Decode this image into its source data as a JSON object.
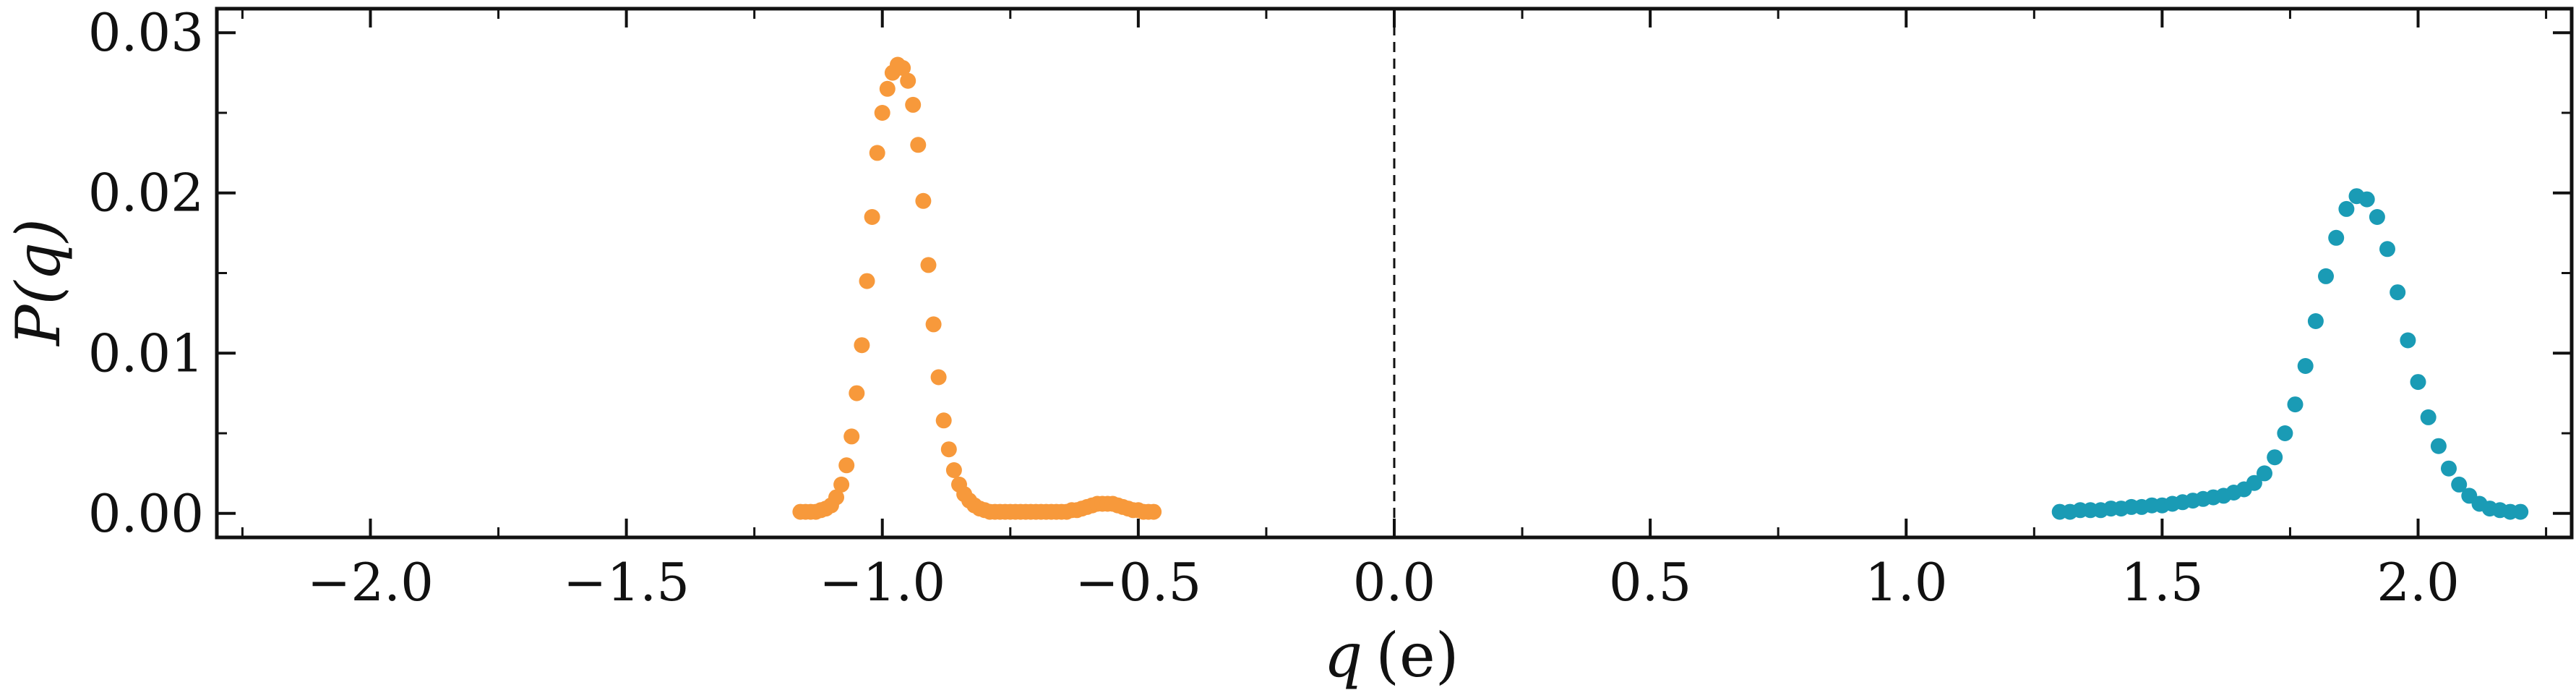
{
  "chart_data": {
    "type": "scatter",
    "xlabel_var": "q",
    "xlabel_unit": "(e)",
    "ylabel": "P(q)",
    "xlim": [
      -2.3,
      2.3
    ],
    "ylim": [
      -0.0015,
      0.0315
    ],
    "x_ticks": [
      -2.0,
      -1.5,
      -1.0,
      -0.5,
      0.0,
      0.5,
      1.0,
      1.5,
      2.0
    ],
    "x_tick_labels": [
      "−2.0",
      "−1.5",
      "−1.0",
      "−0.5",
      "0.0",
      "0.5",
      "1.0",
      "1.5",
      "2.0"
    ],
    "y_ticks": [
      0.0,
      0.01,
      0.02,
      0.03
    ],
    "y_tick_labels": [
      "0.00",
      "0.01",
      "0.02",
      "0.03"
    ],
    "reference_line_x": 0.0,
    "grid": false,
    "series": [
      {
        "color": "#f7993b",
        "x": [
          -1.16,
          -1.15,
          -1.14,
          -1.13,
          -1.12,
          -1.11,
          -1.1,
          -1.09,
          -1.08,
          -1.07,
          -1.06,
          -1.05,
          -1.04,
          -1.03,
          -1.02,
          -1.01,
          -1.0,
          -0.99,
          -0.98,
          -0.97,
          -0.96,
          -0.95,
          -0.94,
          -0.93,
          -0.92,
          -0.91,
          -0.9,
          -0.89,
          -0.88,
          -0.87,
          -0.86,
          -0.85,
          -0.84,
          -0.83,
          -0.82,
          -0.81,
          -0.8,
          -0.79,
          -0.78,
          -0.77,
          -0.76,
          -0.75,
          -0.74,
          -0.73,
          -0.72,
          -0.71,
          -0.7,
          -0.69,
          -0.68,
          -0.67,
          -0.66,
          -0.65,
          -0.64,
          -0.63,
          -0.62,
          -0.61,
          -0.6,
          -0.59,
          -0.58,
          -0.57,
          -0.56,
          -0.55,
          -0.54,
          -0.53,
          -0.52,
          -0.51,
          -0.5,
          -0.49,
          -0.48,
          -0.47
        ],
        "y": [
          0.0001,
          0.0001,
          0.0001,
          0.0001,
          0.0002,
          0.0003,
          0.0005,
          0.001,
          0.0018,
          0.003,
          0.0048,
          0.0075,
          0.0105,
          0.0145,
          0.0185,
          0.0225,
          0.025,
          0.0265,
          0.0275,
          0.028,
          0.0278,
          0.027,
          0.0255,
          0.023,
          0.0195,
          0.0155,
          0.0118,
          0.0085,
          0.0058,
          0.004,
          0.0027,
          0.0018,
          0.0012,
          0.0008,
          0.0005,
          0.0003,
          0.0002,
          0.0001,
          0.0001,
          0.0001,
          0.0001,
          0.0001,
          0.0001,
          0.0001,
          0.0001,
          0.0001,
          0.0001,
          0.0001,
          0.0001,
          0.0001,
          0.0001,
          0.0001,
          0.0001,
          0.0002,
          0.0002,
          0.0003,
          0.0004,
          0.0005,
          0.0006,
          0.0006,
          0.0006,
          0.0006,
          0.0005,
          0.0004,
          0.0003,
          0.0002,
          0.0002,
          0.0001,
          0.0001,
          0.0001
        ]
      },
      {
        "color": "#1a9bb5",
        "x": [
          1.3,
          1.32,
          1.34,
          1.36,
          1.38,
          1.4,
          1.42,
          1.44,
          1.46,
          1.48,
          1.5,
          1.52,
          1.54,
          1.56,
          1.58,
          1.6,
          1.62,
          1.64,
          1.66,
          1.68,
          1.7,
          1.72,
          1.74,
          1.76,
          1.78,
          1.8,
          1.82,
          1.84,
          1.86,
          1.88,
          1.9,
          1.92,
          1.94,
          1.96,
          1.98,
          2.0,
          2.02,
          2.04,
          2.06,
          2.08,
          2.1,
          2.12,
          2.14,
          2.16,
          2.18,
          2.2
        ],
        "y": [
          0.0001,
          0.0001,
          0.0002,
          0.0002,
          0.0002,
          0.0003,
          0.0003,
          0.0004,
          0.0004,
          0.0005,
          0.0005,
          0.0006,
          0.0007,
          0.0008,
          0.0009,
          0.001,
          0.0011,
          0.0013,
          0.0015,
          0.0019,
          0.0025,
          0.0035,
          0.005,
          0.0068,
          0.0092,
          0.012,
          0.0148,
          0.0172,
          0.019,
          0.0198,
          0.0196,
          0.0185,
          0.0165,
          0.0138,
          0.0108,
          0.0082,
          0.006,
          0.0042,
          0.0028,
          0.0018,
          0.0011,
          0.0006,
          0.0003,
          0.0002,
          0.0001,
          0.0001
        ]
      }
    ]
  }
}
